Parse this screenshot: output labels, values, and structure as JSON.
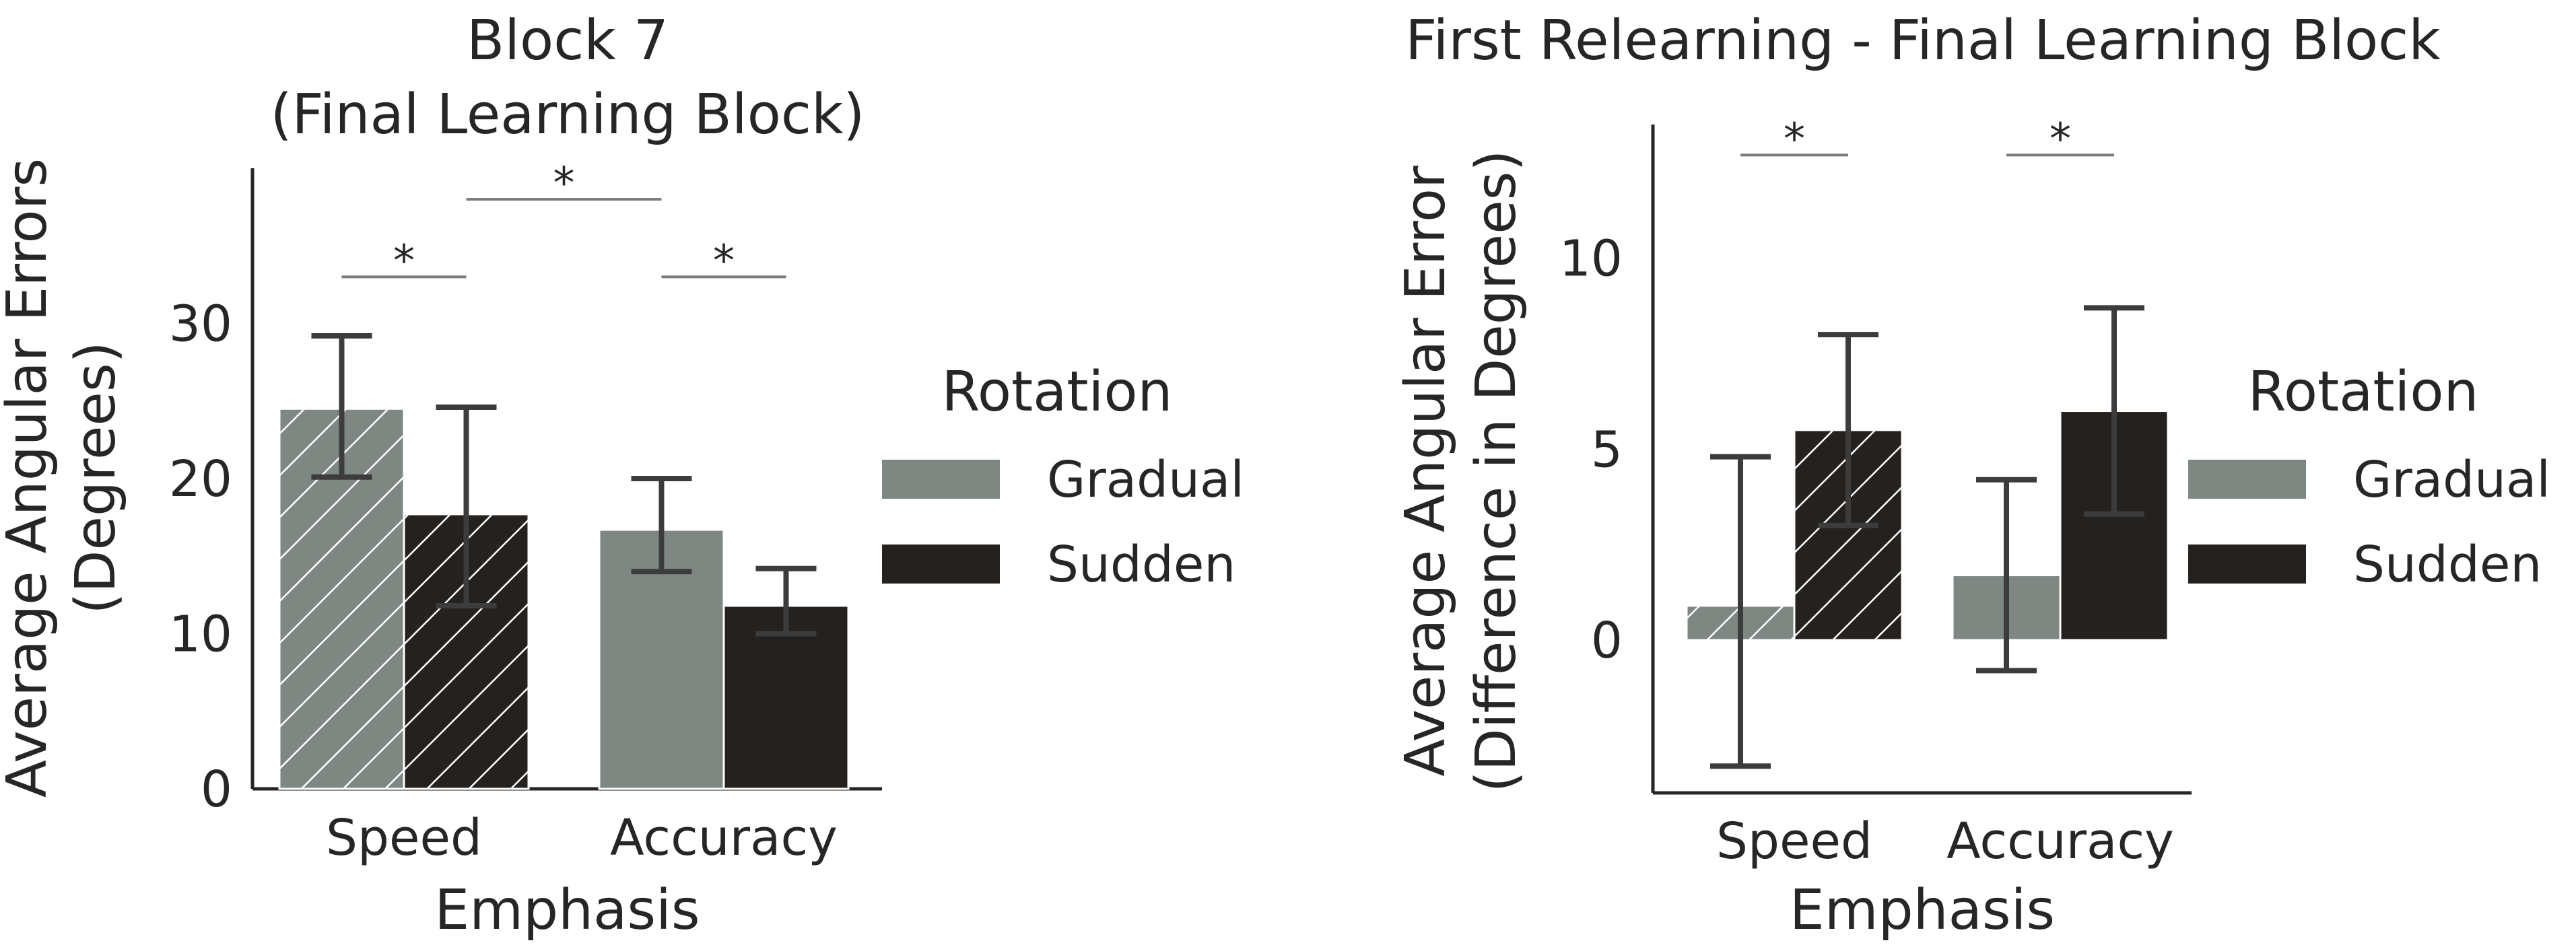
{
  "colors": {
    "gradual": "#7f8783",
    "sudden": "#24211e",
    "axis": "#262626",
    "error_bar": "#3c3c3c",
    "sig_line": "#7a7a7a"
  },
  "chart_data": [
    {
      "type": "bar",
      "title": "Block 7\n(Final Learning Block)",
      "xlabel": "Emphasis",
      "ylabel": "Average Angular Errors\n(Degrees)",
      "categories": [
        "Speed",
        "Accuracy"
      ],
      "ylim": [
        0,
        40
      ],
      "yticks": [
        0,
        10,
        20,
        30
      ],
      "hatched_categories": [
        "Speed"
      ],
      "series": [
        {
          "name": "Gradual",
          "values": [
            24.5,
            16.7
          ],
          "ci_low": [
            20.1,
            14.0
          ],
          "ci_high": [
            29.2,
            20.0
          ]
        },
        {
          "name": "Sudden",
          "values": [
            17.7,
            11.8
          ],
          "ci_low": [
            11.8,
            10.0
          ],
          "ci_high": [
            24.6,
            14.2
          ]
        }
      ],
      "significance": [
        {
          "from": "Speed.Gradual",
          "to": "Speed.Sudden",
          "y": 33,
          "label": "*"
        },
        {
          "from": "Accuracy.Gradual",
          "to": "Accuracy.Sudden",
          "y": 33,
          "label": "*"
        },
        {
          "from": "Speed.Sudden",
          "to": "Accuracy.Gradual",
          "y": 38,
          "label": "*"
        }
      ],
      "legend": {
        "title": "Rotation",
        "entries": [
          "Gradual",
          "Sudden"
        ],
        "placement": "right"
      },
      "grid": false
    },
    {
      "type": "bar",
      "title": "First Relearning - Final Learning Block",
      "xlabel": "Emphasis",
      "ylabel": "Average Angular Error\n(Difference in Degrees)",
      "categories": [
        "Speed",
        "Accuracy"
      ],
      "ylim": [
        -4,
        13.5
      ],
      "yticks": [
        0,
        5,
        10
      ],
      "hatched_categories": [
        "Speed"
      ],
      "series": [
        {
          "name": "Gradual",
          "values": [
            0.9,
            1.7
          ],
          "ci_low": [
            -3.3,
            -0.8
          ],
          "ci_high": [
            4.8,
            4.2
          ]
        },
        {
          "name": "Sudden",
          "values": [
            5.5,
            6.0
          ],
          "ci_low": [
            3.0,
            3.3
          ],
          "ci_high": [
            8.0,
            8.7
          ]
        }
      ],
      "significance": [
        {
          "from": "Speed.Gradual",
          "to": "Speed.Sudden",
          "y": 12.7,
          "label": "*"
        },
        {
          "from": "Accuracy.Gradual",
          "to": "Accuracy.Sudden",
          "y": 12.7,
          "label": "*"
        }
      ],
      "legend": {
        "title": "Rotation",
        "entries": [
          "Gradual",
          "Sudden"
        ],
        "placement": "right"
      },
      "grid": false
    }
  ]
}
